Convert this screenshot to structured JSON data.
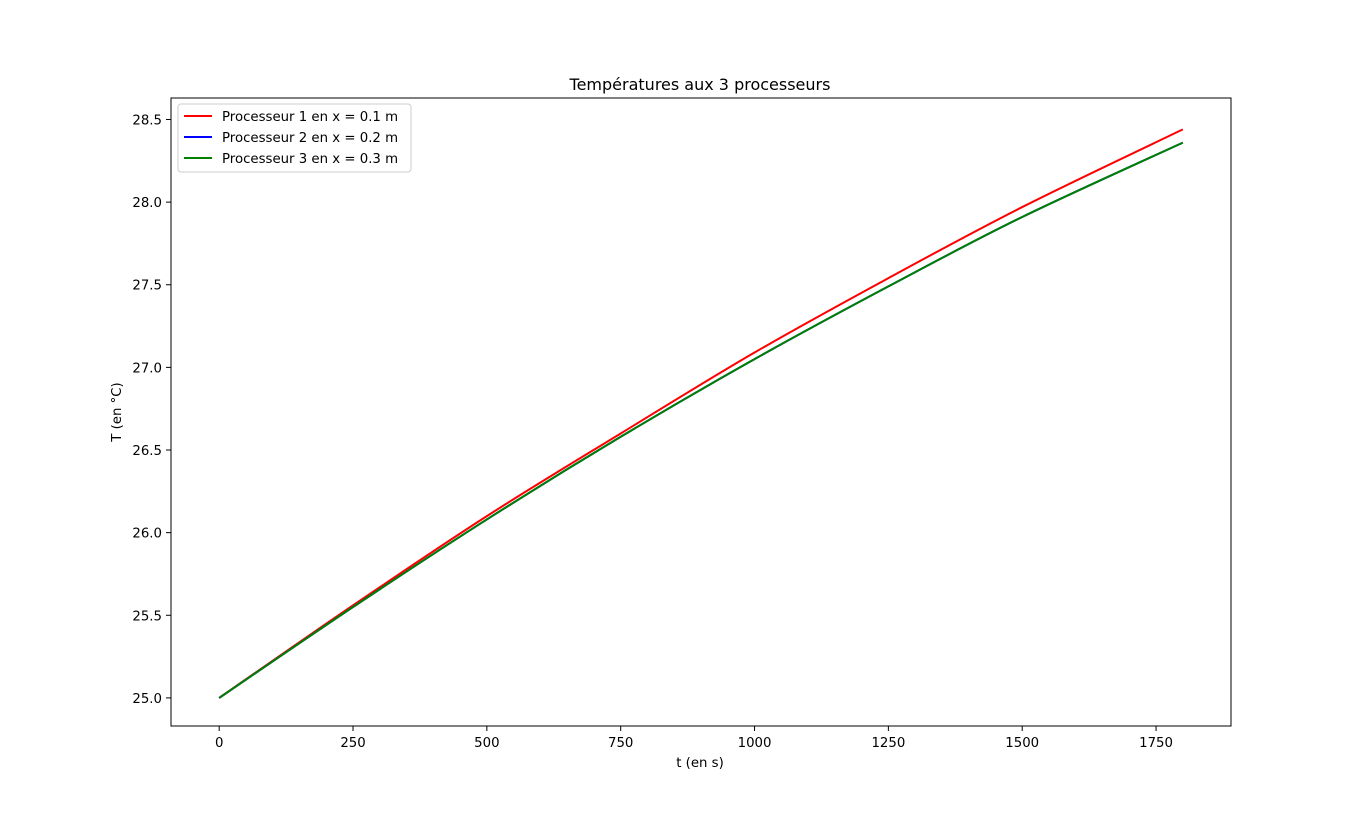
{
  "chart_data": {
    "type": "line",
    "title": "Températures aux 3 processeurs",
    "xlabel": "t (en s)",
    "ylabel": "T (en °C)",
    "xlim": [
      -90,
      1890
    ],
    "ylim": [
      24.83,
      28.63
    ],
    "xticks": [
      0,
      250,
      500,
      750,
      1000,
      1250,
      1500,
      1750
    ],
    "yticks": [
      25.0,
      25.5,
      26.0,
      26.5,
      27.0,
      27.5,
      28.0,
      28.5
    ],
    "grid": false,
    "legend_position": "upper-left",
    "x": [
      0,
      250,
      500,
      750,
      1000,
      1250,
      1500,
      1800
    ],
    "series": [
      {
        "name": "Processeur 1 en x = 0.1 m",
        "color": "#ff0000",
        "values": [
          25.0,
          25.56,
          26.1,
          26.6,
          27.09,
          27.54,
          27.97,
          28.44
        ]
      },
      {
        "name": "Processeur 2 en x = 0.2 m",
        "color": "#0000ff",
        "values": [
          25.0,
          25.55,
          26.08,
          26.58,
          27.05,
          27.49,
          27.91,
          28.36
        ]
      },
      {
        "name": "Processeur 3 en x = 0.3 m",
        "color": "#008000",
        "values": [
          25.0,
          25.55,
          26.08,
          26.58,
          27.05,
          27.49,
          27.91,
          28.36
        ]
      }
    ]
  }
}
